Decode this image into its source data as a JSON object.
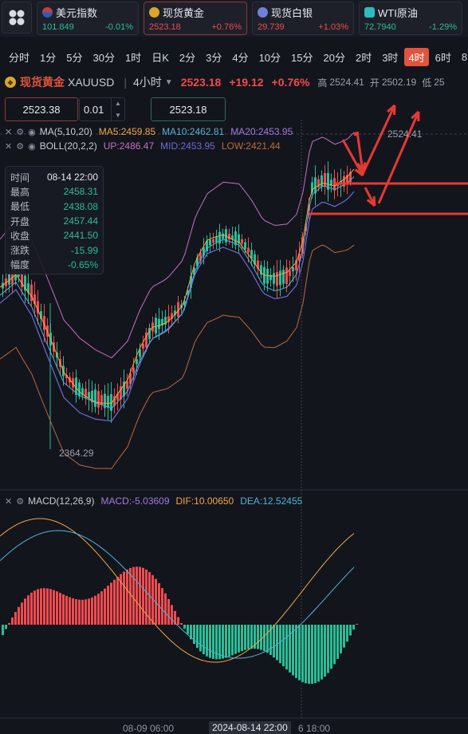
{
  "tickers": [
    {
      "name": "美元指数",
      "price": "101.849",
      "change": "-0.01%",
      "dir": "down",
      "icon": "us-flag-icon",
      "color": "#3a6fd8"
    },
    {
      "name": "现货黄金",
      "price": "2523.18",
      "change": "+0.76%",
      "dir": "up",
      "icon": "gold-icon",
      "color": "#d9a52c"
    },
    {
      "name": "现货白银",
      "price": "29.739",
      "change": "+1.03%",
      "dir": "up",
      "icon": "silver-icon",
      "color": "#6f7fe0"
    },
    {
      "name": "WTI原油",
      "price": "72.7940",
      "change": "-1.29%",
      "dir": "down",
      "icon": "oil-icon",
      "color": "#2bbdc0"
    }
  ],
  "periods": [
    "分时",
    "1分",
    "5分",
    "30分",
    "1时",
    "日K",
    "2分",
    "3分",
    "4分",
    "10分",
    "15分",
    "20分",
    "2时",
    "3时",
    "4时",
    "6时",
    "8"
  ],
  "active_period": "4时",
  "symbol": {
    "name": "现货黄金",
    "code": "XAUUSD",
    "period": "4小时",
    "price": "2523.18",
    "change": "+19.12",
    "change_pct": "+0.76%",
    "high_label": "高",
    "high": "2524.41",
    "open_label": "开",
    "open": "2502.19",
    "low_label": "低",
    "low": "25"
  },
  "order": {
    "sell_price": "2523.38",
    "quantity": "0.01",
    "buy_price": "2523.18"
  },
  "indicators": {
    "ma": {
      "label": "MA(5,10,20)",
      "ma5": "MA5:2459.85",
      "ma10": "MA10:2462.81",
      "ma20": "MA20:2453.95"
    },
    "boll": {
      "label": "BOLL(20,2,2)",
      "up": "UP:2486.47",
      "mid": "MID:2453.95",
      "low": "LOW:2421.44"
    },
    "macd": {
      "label": "MACD(12,26,9)",
      "macd": "MACD:-5.03609",
      "dif": "DIF:10.00650",
      "dea": "DEA:12.52455"
    }
  },
  "info": {
    "rows": [
      {
        "k": "时间",
        "v": "08-14 22:00"
      },
      {
        "k": "最高",
        "v": "2458.31"
      },
      {
        "k": "最低",
        "v": "2438.08"
      },
      {
        "k": "开盘",
        "v": "2457.44"
      },
      {
        "k": "收盘",
        "v": "2441.50"
      },
      {
        "k": "涨跌",
        "v": "-15.99"
      },
      {
        "k": "幅度",
        "v": "-0.65%"
      }
    ]
  },
  "chart": {
    "price_high_label": "2524.41",
    "price_low_label": "2364.29",
    "time_labels": [
      "08-09 06:00",
      "2024-08-14 22:00",
      "6 18:00"
    ]
  },
  "colors": {
    "up": "#ef4b4f",
    "down": "#2bbd97",
    "accent": "#e1543d",
    "ma5": "#f0a648",
    "ma10": "#4fb3d9",
    "ma20": "#a07ae0",
    "boll_up": "#c56fc7",
    "boll_mid": "#6b6bd8",
    "boll_low": "#b86a3c"
  }
}
